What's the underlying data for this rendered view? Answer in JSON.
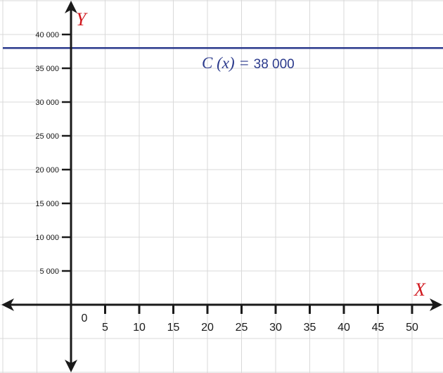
{
  "chart_data": {
    "type": "line",
    "xlabel": "X",
    "ylabel": "Y",
    "x_ticks": [
      "0",
      "5",
      "10",
      "15",
      "20",
      "25",
      "30",
      "35",
      "40",
      "45",
      "50"
    ],
    "y_ticks": [
      "5 000",
      "10 000",
      "15 000",
      "20 000",
      "25 000",
      "30 000",
      "35 000",
      "40 000"
    ],
    "xlim": [
      -10,
      55
    ],
    "ylim": [
      -10000,
      43000
    ],
    "grid": true,
    "series": [
      {
        "name": "C (x) = 38 000",
        "x": [
          -10,
          55
        ],
        "y": [
          38000,
          38000
        ]
      }
    ],
    "annotation": {
      "prefix": "C (x) = ",
      "value": "38 000"
    },
    "colors": {
      "line": "#2b3a8c",
      "axis": "#1a1a1a",
      "grid": "#d9d9d9",
      "axis_name": "#d0161c"
    }
  }
}
